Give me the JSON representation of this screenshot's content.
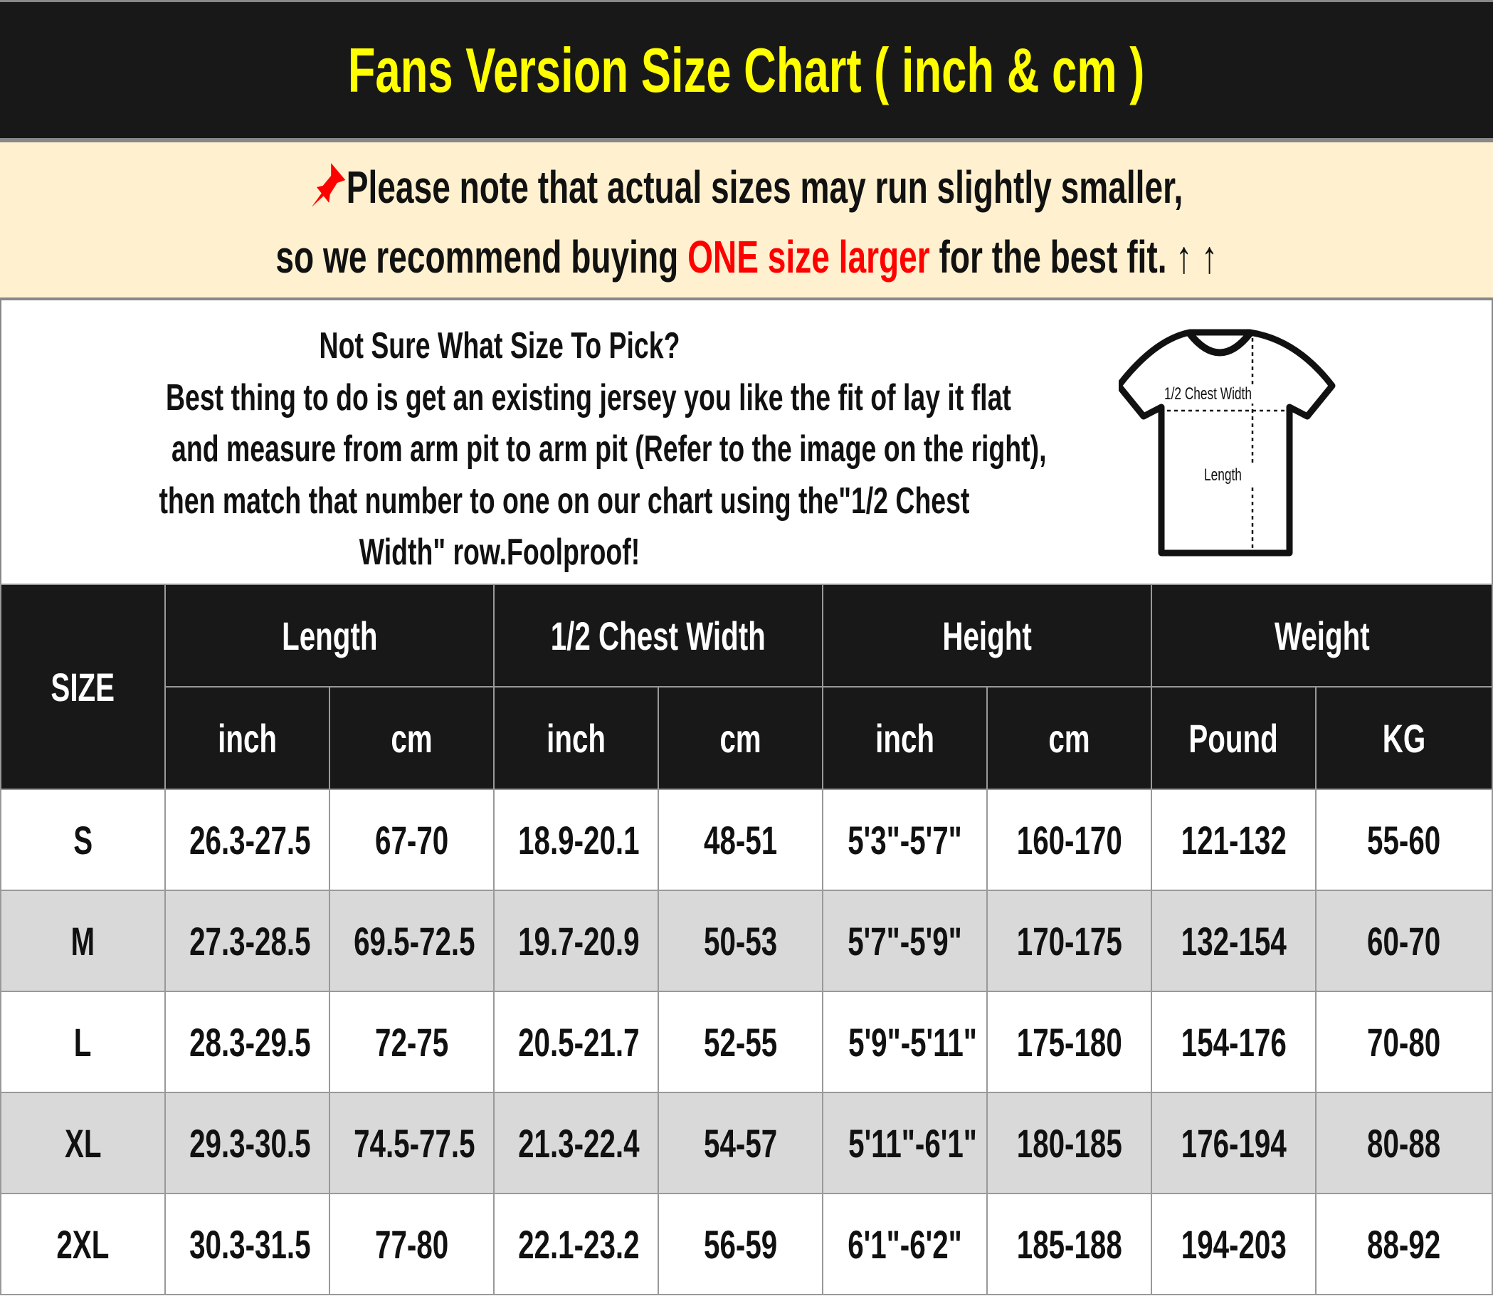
{
  "title": "Fans Version Size Chart ( inch & cm )",
  "notice": {
    "icon": "pushpin-icon",
    "line1": "Please note that actual sizes may run slightly smaller,",
    "line2_pre": "so we recommend buying ",
    "line2_highlight": "ONE size larger",
    "line2_post": " for the best fit.",
    "arrows": "↑ ↑",
    "highlight_color": "#ff0000"
  },
  "info": {
    "heading": "Not Sure What Size To Pick?",
    "body1": "Best thing to do is get an existing jersey you like the fit of lay it flat",
    "body2": "and measure from arm pit to arm pit (Refer to the image on the right),",
    "body3": "then match that number to one on our chart using the\"1/2 Chest",
    "body4": "Width\" row.Foolproof!",
    "diagram_chest": "1/2 Chest Width",
    "diagram_length": "Length"
  },
  "table": {
    "size_header": "SIZE",
    "groups": [
      "Length",
      "1/2 Chest Width",
      "Height",
      "Weight"
    ],
    "units": [
      "inch",
      "cm",
      "inch",
      "cm",
      "inch",
      "cm",
      "Pound",
      "KG"
    ],
    "rows": [
      [
        "S",
        "26.3-27.5",
        "67-70",
        "18.9-20.1",
        "48-51",
        "5'3\"-5'7\"",
        "160-170",
        "121-132",
        "55-60"
      ],
      [
        "M",
        "27.3-28.5",
        "69.5-72.5",
        "19.7-20.9",
        "50-53",
        "5'7\"-5'9\"",
        "170-175",
        "132-154",
        "60-70"
      ],
      [
        "L",
        "28.3-29.5",
        "72-75",
        "20.5-21.7",
        "52-55",
        "5'9\"-5'11\"",
        "175-180",
        "154-176",
        "70-80"
      ],
      [
        "XL",
        "29.3-30.5",
        "74.5-77.5",
        "21.3-22.4",
        "54-57",
        "5'11\"-6'1\"",
        "180-185",
        "176-194",
        "80-88"
      ],
      [
        "2XL",
        "30.3-31.5",
        "77-80",
        "22.1-23.2",
        "56-59",
        "6'1\"-6'2\"",
        "185-188",
        "194-203",
        "88-92"
      ]
    ]
  }
}
